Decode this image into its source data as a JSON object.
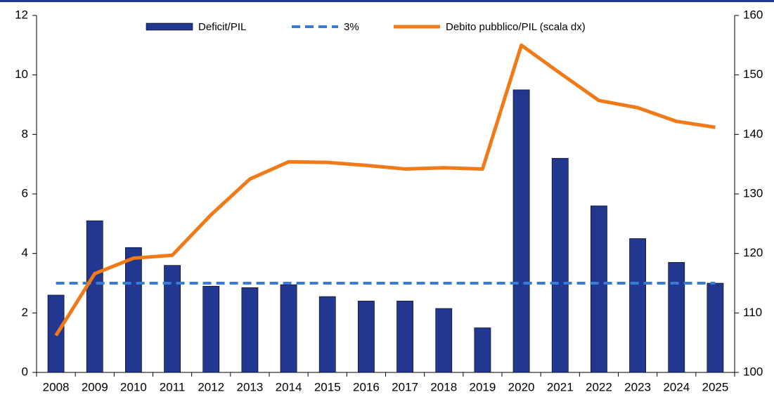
{
  "chart_data": {
    "type": "bar-line",
    "categories": [
      "2008",
      "2009",
      "2010",
      "2011",
      "2012",
      "2013",
      "2014",
      "2015",
      "2016",
      "2017",
      "2018",
      "2019",
      "2020",
      "2021",
      "2022",
      "2023",
      "2024",
      "2025"
    ],
    "series": [
      {
        "name": "Deficit/PIL",
        "type": "bar",
        "color": "#22378f",
        "values": [
          2.6,
          5.1,
          4.2,
          3.6,
          2.9,
          2.85,
          2.95,
          2.55,
          2.4,
          2.4,
          2.15,
          1.5,
          9.5,
          7.2,
          5.6,
          4.5,
          3.7,
          3.0
        ]
      },
      {
        "name": "3%",
        "type": "line",
        "dash": true,
        "color": "#3b7bd8",
        "values": [
          3,
          3,
          3,
          3,
          3,
          3,
          3,
          3,
          3,
          3,
          3,
          3,
          3,
          3,
          3,
          3,
          3,
          3
        ]
      },
      {
        "name": "Debito pubblico/PIL (scala dx)",
        "type": "line",
        "axis": "y2",
        "color": "#f07a18",
        "values": [
          106.2,
          116.6,
          119.2,
          119.7,
          126.5,
          132.5,
          135.4,
          135.3,
          134.8,
          134.2,
          134.4,
          134.2,
          155.0,
          150.3,
          145.7,
          144.5,
          142.2,
          141.2
        ]
      }
    ],
    "ylim": [
      0,
      12
    ],
    "yticks": [
      0,
      2,
      4,
      6,
      8,
      10,
      12
    ],
    "y2lim": [
      100,
      160
    ],
    "y2ticks": [
      100,
      110,
      120,
      130,
      140,
      150,
      160
    ],
    "grid": false,
    "legend": "top"
  }
}
